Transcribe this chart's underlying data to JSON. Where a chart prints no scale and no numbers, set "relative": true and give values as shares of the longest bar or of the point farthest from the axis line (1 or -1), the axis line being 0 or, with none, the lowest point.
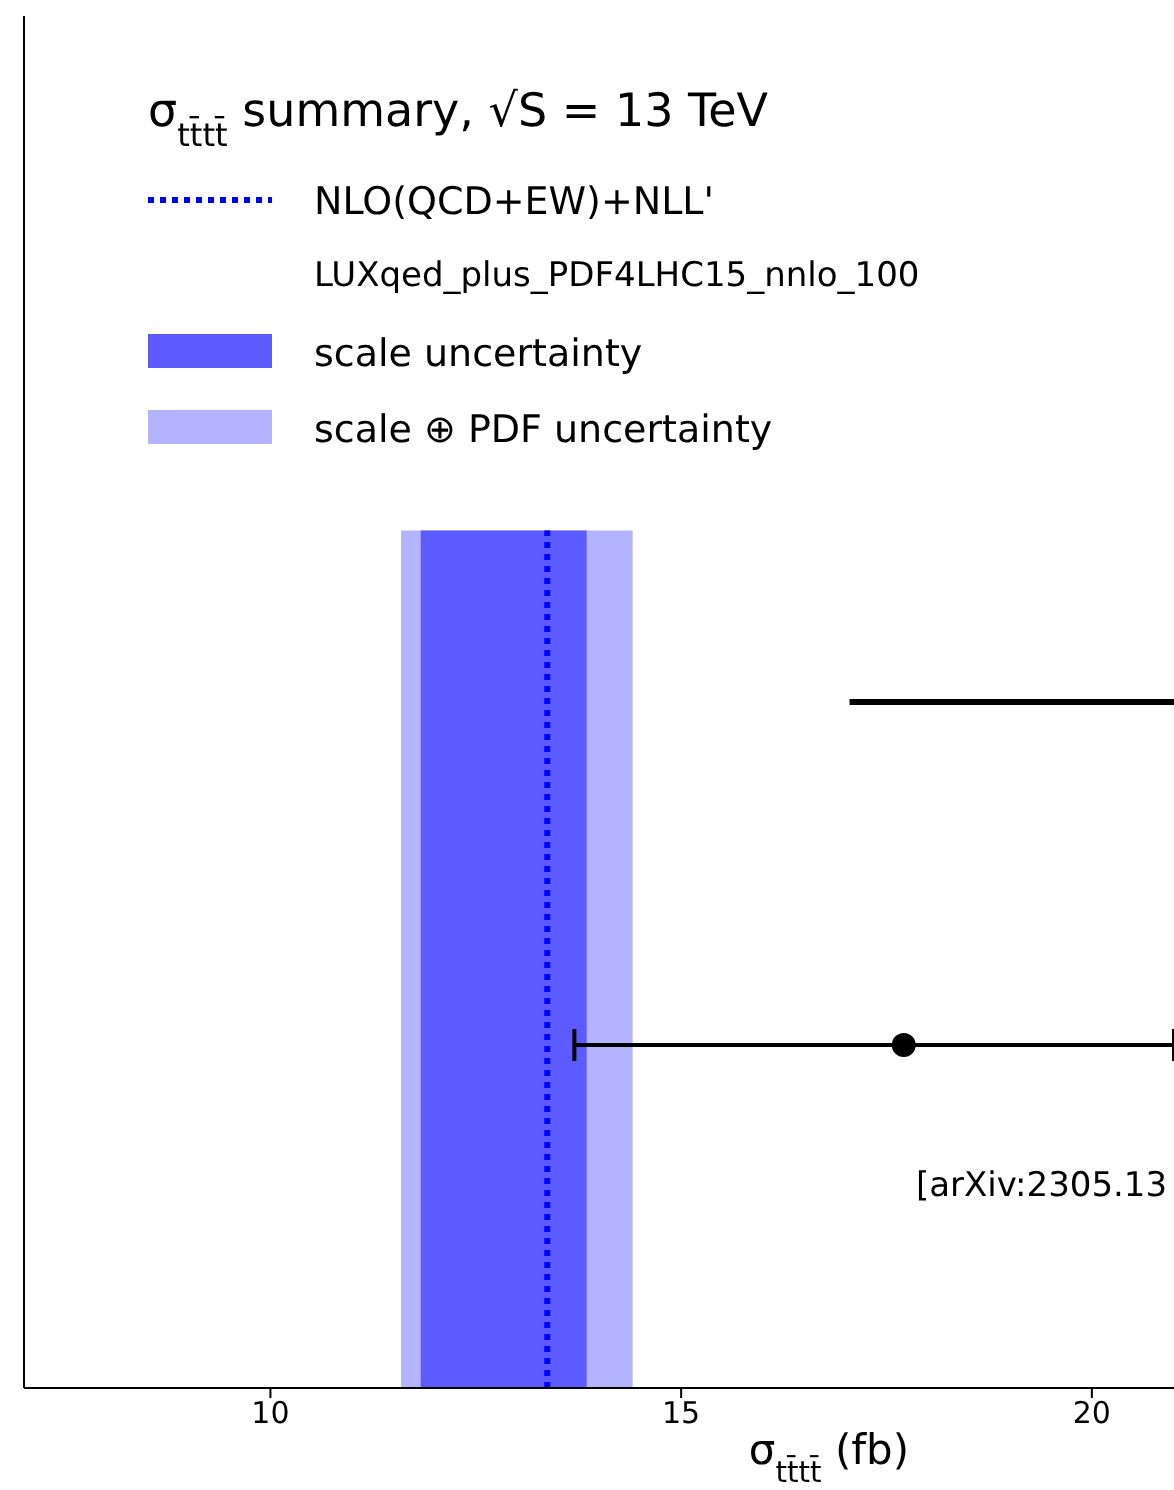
{
  "chart_data": {
    "type": "scatter",
    "relative": true,
    "legend_title": "σ$_{tt̄tt̄}$ summary, √S = 13 TeV",
    "xlabel": "σ$_{tt̄tt̄}$ (fb)",
    "xlim": [
      7,
      21
    ],
    "xticks": [
      10,
      15,
      20
    ],
    "legend": "top left",
    "annotations": [
      "LUXqed_plus_PDF4LHC15_nnlo_100",
      "[arXiv:2305.13"
    ],
    "series": [
      {
        "type": "area",
        "name": "scale ⊕ PDF uncertainty",
        "color": "#b3b3ff",
        "x": [
          11.59,
          14.41
        ],
        "values": [
          1,
          1
        ]
      },
      {
        "type": "area",
        "name": "scale uncertainty",
        "color": "#5b5bff",
        "x": [
          11.83,
          13.85
        ],
        "values": [
          1,
          1
        ]
      },
      {
        "type": "line",
        "name": "NLO(QCD+EW)+NLL'",
        "color": "#0000ff",
        "line_style": "dotted",
        "marker": "none",
        "x": [
          13.37,
          13.37
        ],
        "values": [
          0,
          1
        ]
      },
      {
        "color": "#000000",
        "marker": "circle",
        "x": [
          17.71
        ],
        "values": [
          0.4
        ],
        "xerrors": [
          [
            13.7,
            21
          ]
        ]
      },
      {
        "type": "line",
        "color": "#000000",
        "marker": "none",
        "x": [
          17.05,
          21
        ],
        "values": [
          0.8,
          0.8
        ]
      }
    ]
  }
}
